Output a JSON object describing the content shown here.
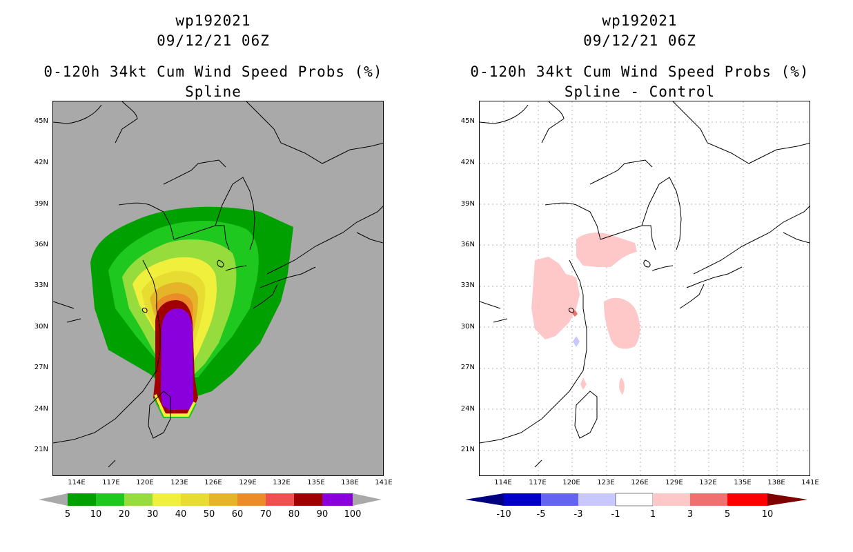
{
  "panels": {
    "left": {
      "title1": "wp192021",
      "title2": "09/12/21 06Z",
      "title3": "0-120h 34kt Cum Wind Speed Probs (%)",
      "title4": "Spline"
    },
    "right": {
      "title1": "wp192021",
      "title2": "09/12/21 06Z",
      "title3": "0-120h 34kt Cum Wind Speed Probs (%)",
      "title4": "Spline - Control"
    }
  },
  "axes": {
    "lat_labels": [
      "45N",
      "42N",
      "39N",
      "36N",
      "33N",
      "30N",
      "27N",
      "24N",
      "21N"
    ],
    "lon_labels": [
      "114E",
      "117E",
      "120E",
      "123E",
      "126E",
      "129E",
      "132E",
      "135E",
      "138E",
      "141E"
    ]
  },
  "colorbars": {
    "left": {
      "labels": [
        "5",
        "10",
        "20",
        "30",
        "40",
        "50",
        "60",
        "70",
        "80",
        "90",
        "100"
      ],
      "colors": [
        "#00a000",
        "#1ec81e",
        "#96dc3c",
        "#f0f03c",
        "#e6dc32",
        "#e6b428",
        "#ec8c28",
        "#f05050",
        "#a00000",
        "#8a00dc"
      ]
    },
    "right": {
      "labels": [
        "-10",
        "-5",
        "-3",
        "-1",
        "1",
        "3",
        "5",
        "10"
      ],
      "colors": [
        "#0000c8",
        "#6464f0",
        "#c8c8ff",
        "#ffffff",
        "#ffc8c8",
        "#f07070",
        "#ff0000"
      ],
      "end_colors": [
        "#000080",
        "#800000"
      ]
    }
  }
}
